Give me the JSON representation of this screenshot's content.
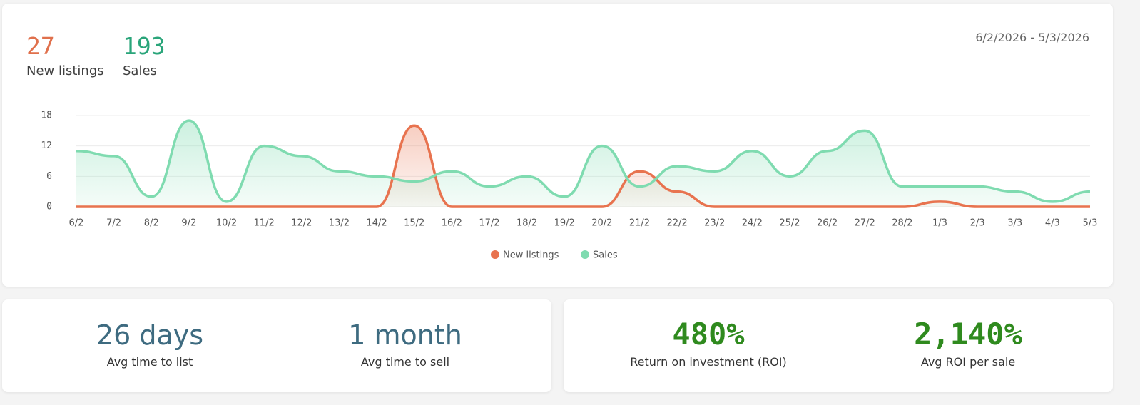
{
  "header": {
    "new_listings": {
      "value": 27,
      "label": "New listings"
    },
    "sales": {
      "value": 193,
      "label": "Sales"
    },
    "date_range": "6/2/2026 - 5/3/2026"
  },
  "chart_data": {
    "type": "line",
    "smooth": true,
    "area": true,
    "grid": true,
    "legend": "bottom",
    "categories": [
      "6/2",
      "7/2",
      "8/2",
      "9/2",
      "10/2",
      "11/2",
      "12/2",
      "13/2",
      "14/2",
      "15/2",
      "16/2",
      "17/2",
      "18/2",
      "19/2",
      "20/2",
      "21/2",
      "22/2",
      "23/2",
      "24/2",
      "25/2",
      "26/2",
      "27/2",
      "28/2",
      "1/3",
      "2/3",
      "3/3",
      "4/3",
      "5/3"
    ],
    "series": [
      {
        "name": "New listings",
        "color": "#e8734f",
        "values": [
          0,
          0,
          0,
          0,
          0,
          0,
          0,
          0,
          0,
          16,
          0,
          0,
          0,
          0,
          0,
          7,
          3,
          0,
          0,
          0,
          0,
          0,
          0,
          1,
          0,
          0,
          0,
          0
        ]
      },
      {
        "name": "Sales",
        "color": "#7fdbb0",
        "values": [
          11,
          10,
          2,
          17,
          1,
          12,
          10,
          7,
          6,
          5,
          7,
          4,
          6,
          2,
          12,
          4,
          8,
          7,
          11,
          6,
          11,
          15,
          4,
          4,
          4,
          3,
          1,
          3
        ]
      }
    ],
    "ylim": [
      0,
      18
    ],
    "yticks": [
      0,
      6,
      12,
      18
    ]
  },
  "time_stats": [
    {
      "value": "26 days",
      "label": "Avg time to list"
    },
    {
      "value": "1 month",
      "label": "Avg time to sell"
    }
  ],
  "roi_stats": [
    {
      "value": "480%",
      "label": "Return on investment (ROI)"
    },
    {
      "value": "2,140%",
      "label": "Avg ROI per sale"
    }
  ]
}
